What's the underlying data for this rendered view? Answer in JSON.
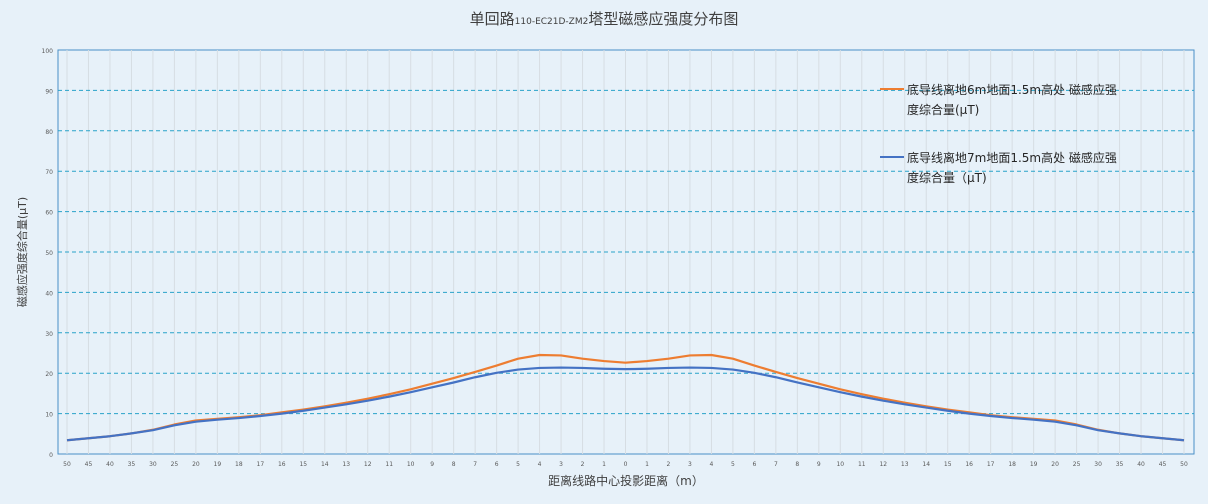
{
  "chart_data": {
    "type": "line",
    "title_main_pre": "单回路",
    "title_small": "110-EC21D-ZM2",
    "title_main_post": "塔型磁感应强度分布图",
    "xlabel": "距离线路中心投影距离（m）",
    "ylabel": "磁感应强度综合量(μT)",
    "ylim": [
      0,
      100
    ],
    "yticks": [
      "0",
      "10",
      "20",
      "30",
      "40",
      "50",
      "60",
      "70",
      "80",
      "90",
      "100"
    ],
    "grid": true,
    "legend_position": "right",
    "categories": [
      "50",
      "45",
      "40",
      "35",
      "30",
      "25",
      "20",
      "19",
      "18",
      "17",
      "16",
      "15",
      "14",
      "13",
      "12",
      "11",
      "10",
      "9",
      "8",
      "7",
      "6",
      "5",
      "4",
      "3",
      "2",
      "1",
      "0",
      "1",
      "2",
      "3",
      "4",
      "5",
      "6",
      "7",
      "8",
      "9",
      "10",
      "11",
      "12",
      "13",
      "14",
      "15",
      "16",
      "17",
      "18",
      "19",
      "20",
      "25",
      "30",
      "35",
      "40",
      "45",
      "50"
    ],
    "series": [
      {
        "name": "底导线离地6m地面1.5m高处 磁感应强度综合量(μT)",
        "color": "#ed7d31",
        "values": [
          3.4,
          3.9,
          4.4,
          5.1,
          6.0,
          7.3,
          8.3,
          8.7,
          9.1,
          9.6,
          10.3,
          11.0,
          11.8,
          12.7,
          13.7,
          14.8,
          16.0,
          17.4,
          18.8,
          20.3,
          21.9,
          23.6,
          24.5,
          24.4,
          23.6,
          23.0,
          22.6,
          23.0,
          23.6,
          24.4,
          24.5,
          23.6,
          21.9,
          20.3,
          18.8,
          17.4,
          16.0,
          14.8,
          13.7,
          12.7,
          11.8,
          11.0,
          10.3,
          9.6,
          9.1,
          8.7,
          8.3,
          7.3,
          6.0,
          5.1,
          4.4,
          3.9,
          3.4
        ]
      },
      {
        "name": "底导线离地7m地面1.5m高处 磁感应强度综合量（μT)",
        "color": "#4472c4",
        "values": [
          3.4,
          3.9,
          4.4,
          5.1,
          5.9,
          7.1,
          8.0,
          8.5,
          8.9,
          9.4,
          10.0,
          10.7,
          11.5,
          12.3,
          13.2,
          14.2,
          15.3,
          16.5,
          17.7,
          19.0,
          20.1,
          20.9,
          21.3,
          21.4,
          21.3,
          21.1,
          21.0,
          21.1,
          21.3,
          21.4,
          21.3,
          20.9,
          20.1,
          19.0,
          17.7,
          16.5,
          15.3,
          14.2,
          13.2,
          12.3,
          11.5,
          10.7,
          10.0,
          9.4,
          8.9,
          8.5,
          8.0,
          7.1,
          5.9,
          5.1,
          4.4,
          3.9,
          3.4
        ]
      }
    ]
  },
  "legend": {
    "item1_line1": "底导线离地6m地面1.5m高处 磁感应强",
    "item1_line2": "度综合量(μT)",
    "item2_line1": "底导线离地7m地面1.5m高处 磁感应强",
    "item2_line2": "度综合量（μT)"
  }
}
